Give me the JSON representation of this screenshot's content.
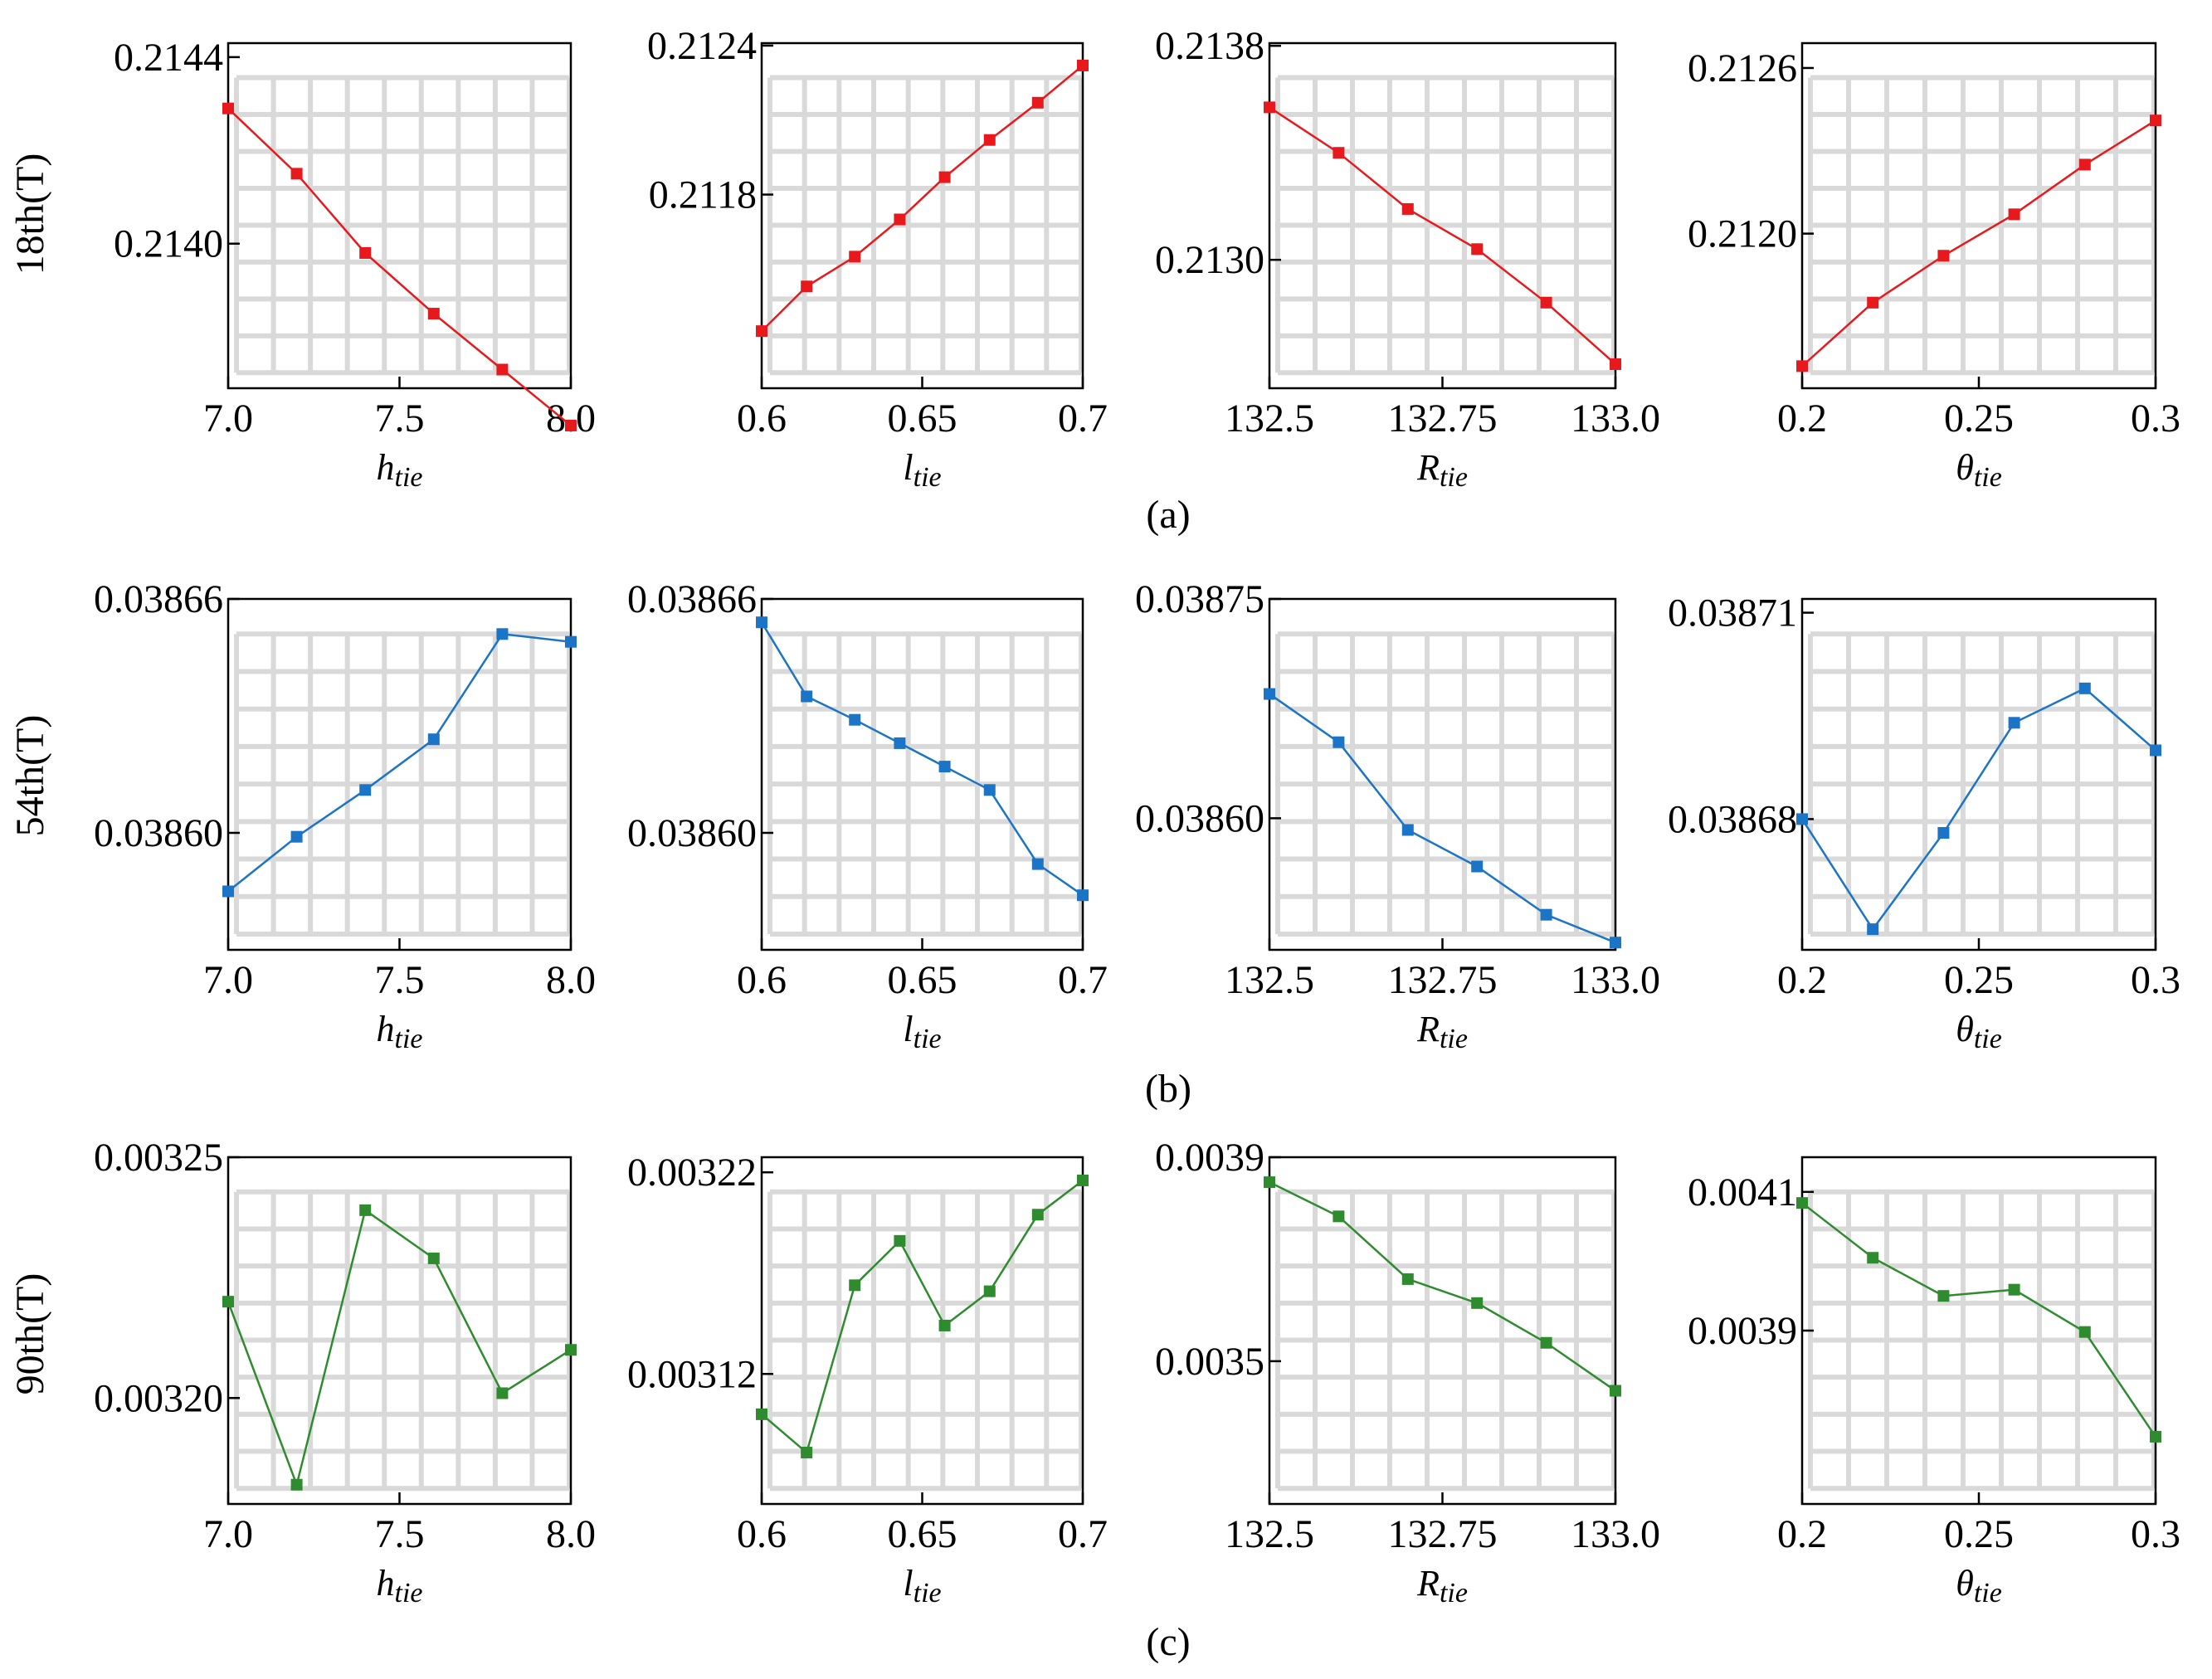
{
  "figure": {
    "rows": [
      {
        "label": "(a)",
        "ylabel": "18th(T)"
      },
      {
        "label": "(b)",
        "ylabel": "54th(T)"
      },
      {
        "label": "(c)",
        "ylabel": "90th(T)"
      }
    ],
    "colors": {
      "row0": "#e8191c",
      "row1": "#1b74c6",
      "row2": "#2e8b2e",
      "grid": "#d9d9d9",
      "frame": "#000000"
    }
  },
  "chart_data": [
    {
      "type": "line",
      "row": 0,
      "col": 0,
      "xvar": "h",
      "xsub": "tie",
      "xlim": [
        7.0,
        8.0
      ],
      "xticks": [
        7.0,
        7.5,
        8.0
      ],
      "xtick_labels": [
        "7.0",
        "7.5",
        "8.0"
      ],
      "ylim": [
        0.21369,
        0.21443
      ],
      "yticks": [
        0.214,
        0.2144
      ],
      "ytick_labels": [
        "0.2140",
        "0.2144"
      ],
      "x": [
        7.0,
        7.2,
        7.4,
        7.6,
        7.8,
        8.0
      ],
      "y": [
        0.21429,
        0.21415,
        0.21398,
        0.21385,
        0.21373,
        0.21361
      ]
    },
    {
      "type": "line",
      "row": 0,
      "col": 1,
      "xvar": "l",
      "xsub": "tie",
      "xlim": [
        0.6,
        0.7
      ],
      "xticks": [
        0.6,
        0.65,
        0.7
      ],
      "xtick_labels": [
        "0.6",
        "0.65",
        "0.7"
      ],
      "ylim": [
        0.21102,
        0.21241
      ],
      "yticks": [
        0.2118,
        0.2124
      ],
      "ytick_labels": [
        "0.2118",
        "0.2124"
      ],
      "x": [
        0.6,
        0.614,
        0.629,
        0.643,
        0.657,
        0.671,
        0.686,
        0.7
      ],
      "y": [
        0.21125,
        0.21143,
        0.21155,
        0.2117,
        0.21187,
        0.21202,
        0.21217,
        0.21232
      ]
    },
    {
      "type": "line",
      "row": 0,
      "col": 2,
      "xvar": "R",
      "xsub": "tie",
      "xlim": [
        132.5,
        133.0
      ],
      "xticks": [
        132.5,
        132.75,
        133.0
      ],
      "xtick_labels": [
        "132.5",
        "132.75",
        "133.0"
      ],
      "ylim": [
        0.21252,
        0.21381
      ],
      "yticks": [
        0.213,
        0.2138
      ],
      "ytick_labels": [
        "0.2130",
        "0.2138"
      ],
      "x": [
        132.5,
        132.6,
        132.7,
        132.8,
        132.9,
        133.0
      ],
      "y": [
        0.21357,
        0.2134,
        0.21319,
        0.21304,
        0.21284,
        0.21261
      ]
    },
    {
      "type": "line",
      "row": 0,
      "col": 3,
      "xvar": "θ",
      "xsub": "tie",
      "xlim": [
        0.2,
        0.3
      ],
      "xticks": [
        0.2,
        0.25,
        0.3
      ],
      "xtick_labels": [
        "0.2",
        "0.25",
        "0.3"
      ],
      "ylim": [
        0.21144,
        0.21269
      ],
      "yticks": [
        0.212,
        0.2126
      ],
      "ytick_labels": [
        "0.2120",
        "0.2126"
      ],
      "x": [
        0.2,
        0.22,
        0.24,
        0.26,
        0.28,
        0.3
      ],
      "y": [
        0.21152,
        0.21175,
        0.21192,
        0.21207,
        0.21225,
        0.21241
      ]
    },
    {
      "type": "line",
      "row": 1,
      "col": 0,
      "xvar": "h",
      "xsub": "tie",
      "xlim": [
        7.0,
        8.0
      ],
      "xticks": [
        7.0,
        7.5,
        8.0
      ],
      "xtick_labels": [
        "7.0",
        "7.5",
        "8.0"
      ],
      "ylim": [
        0.03857,
        0.03866
      ],
      "yticks": [
        0.0386,
        0.03866
      ],
      "ytick_labels": [
        "0.03860",
        "0.03866"
      ],
      "x": [
        7.0,
        7.2,
        7.4,
        7.6,
        7.8,
        8.0
      ],
      "y": [
        0.038585,
        0.038599,
        0.038611,
        0.038624,
        0.038651,
        0.038649
      ]
    },
    {
      "type": "line",
      "row": 1,
      "col": 1,
      "xvar": "l",
      "xsub": "tie",
      "xlim": [
        0.6,
        0.7
      ],
      "xticks": [
        0.6,
        0.65,
        0.7
      ],
      "xtick_labels": [
        "0.6",
        "0.65",
        "0.7"
      ],
      "ylim": [
        0.03857,
        0.03866
      ],
      "yticks": [
        0.0386,
        0.03866
      ],
      "ytick_labels": [
        "0.03860",
        "0.03866"
      ],
      "x": [
        0.6,
        0.614,
        0.629,
        0.643,
        0.657,
        0.671,
        0.686,
        0.7
      ],
      "y": [
        0.038654,
        0.038635,
        0.038629,
        0.038623,
        0.038617,
        0.038611,
        0.038592,
        0.038584
      ]
    },
    {
      "type": "line",
      "row": 1,
      "col": 2,
      "xvar": "R",
      "xsub": "tie",
      "xlim": [
        132.5,
        133.0
      ],
      "xticks": [
        132.5,
        132.75,
        133.0
      ],
      "xtick_labels": [
        "132.5",
        "132.75",
        "133.0"
      ],
      "ylim": [
        0.03851,
        0.03875
      ],
      "yticks": [
        0.0386,
        0.03875
      ],
      "ytick_labels": [
        "0.03860",
        "0.03875"
      ],
      "x": [
        132.5,
        132.6,
        132.7,
        132.8,
        132.9,
        133.0
      ],
      "y": [
        0.038685,
        0.038652,
        0.038592,
        0.038567,
        0.038534,
        0.038515
      ]
    },
    {
      "type": "line",
      "row": 1,
      "col": 3,
      "xvar": "θ",
      "xsub": "tie",
      "xlim": [
        0.2,
        0.3
      ],
      "xticks": [
        0.2,
        0.25,
        0.3
      ],
      "xtick_labels": [
        "0.2",
        "0.25",
        "0.3"
      ],
      "ylim": [
        0.038661,
        0.038712
      ],
      "yticks": [
        0.03868,
        0.03871
      ],
      "ytick_labels": [
        "0.03868",
        "0.03871"
      ],
      "x": [
        0.2,
        0.22,
        0.24,
        0.26,
        0.28,
        0.3
      ],
      "y": [
        0.03868,
        0.038664,
        0.038678,
        0.038694,
        0.038699,
        0.03869
      ]
    },
    {
      "type": "line",
      "row": 2,
      "col": 0,
      "xvar": "h",
      "xsub": "tie",
      "xlim": [
        7.0,
        8.0
      ],
      "xticks": [
        7.0,
        7.5,
        8.0
      ],
      "xtick_labels": [
        "7.0",
        "7.5",
        "8.0"
      ],
      "ylim": [
        0.003178,
        0.00325
      ],
      "yticks": [
        0.0032,
        0.00325
      ],
      "ytick_labels": [
        "0.00320",
        "0.00325"
      ],
      "x": [
        7.0,
        7.2,
        7.4,
        7.6,
        7.8,
        8.0
      ],
      "y": [
        0.00322,
        0.003182,
        0.003239,
        0.003229,
        0.003201,
        0.00321
      ]
    },
    {
      "type": "line",
      "row": 2,
      "col": 1,
      "xvar": "l",
      "xsub": "tie",
      "xlim": [
        0.6,
        0.7
      ],
      "xticks": [
        0.6,
        0.65,
        0.7
      ],
      "xtick_labels": [
        "0.6",
        "0.65",
        "0.7"
      ],
      "ylim": [
        0.0030555,
        0.0032275
      ],
      "yticks": [
        0.00312,
        0.00322
      ],
      "ytick_labels": [
        "0.00312",
        "0.00322"
      ],
      "x": [
        0.6,
        0.614,
        0.629,
        0.643,
        0.657,
        0.671,
        0.686,
        0.7
      ],
      "y": [
        0.0031,
        0.003081,
        0.003164,
        0.003186,
        0.003144,
        0.003161,
        0.003199,
        0.003216
      ]
    },
    {
      "type": "line",
      "row": 2,
      "col": 2,
      "xvar": "R",
      "xsub": "tie",
      "xlim": [
        132.5,
        133.0
      ],
      "xticks": [
        132.5,
        132.75,
        133.0
      ],
      "xtick_labels": [
        "132.5",
        "132.75",
        "133.0"
      ],
      "ylim": [
        0.00322,
        0.0039
      ],
      "yticks": [
        0.0035,
        0.0039
      ],
      "ytick_labels": [
        "0.0035",
        "0.0039"
      ],
      "x": [
        132.5,
        132.6,
        132.7,
        132.8,
        132.9,
        133.0
      ],
      "y": [
        0.003851,
        0.003784,
        0.003661,
        0.003614,
        0.003536,
        0.003442
      ]
    },
    {
      "type": "line",
      "row": 2,
      "col": 3,
      "xvar": "θ",
      "xsub": "tie",
      "xlim": [
        0.2,
        0.3
      ],
      "xticks": [
        0.2,
        0.25,
        0.3
      ],
      "xtick_labels": [
        "0.2",
        "0.25",
        "0.3"
      ],
      "ylim": [
        0.00365,
        0.00415
      ],
      "yticks": [
        0.0039,
        0.0041
      ],
      "ytick_labels": [
        "0.0039",
        "0.0041"
      ],
      "x": [
        0.2,
        0.22,
        0.24,
        0.26,
        0.28,
        0.3
      ],
      "y": [
        0.004084,
        0.004005,
        0.00395,
        0.003959,
        0.003898,
        0.003747
      ]
    }
  ]
}
